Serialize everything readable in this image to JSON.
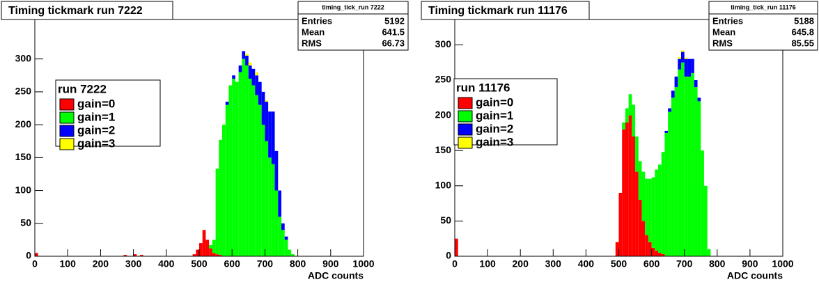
{
  "chart_data": [
    {
      "type": "histogram",
      "title": "Timing tickmark run 7222",
      "x_label": "ADC counts",
      "legend_title": "run 7222",
      "stats": {
        "title": "timing_tick_run 7222",
        "rows": [
          {
            "label": "Entries",
            "value": 5192
          },
          {
            "label": "Mean",
            "value": 641.5
          },
          {
            "label": "RMS",
            "value": 66.73
          }
        ]
      },
      "bins": [
        0,
        10,
        20,
        30,
        40,
        50,
        60,
        70,
        80,
        90,
        100,
        110,
        120,
        130,
        140,
        150,
        160,
        170,
        180,
        190,
        200,
        210,
        220,
        230,
        240,
        250,
        260,
        270,
        280,
        290,
        300,
        310,
        320,
        330,
        340,
        350,
        360,
        370,
        380,
        390,
        400,
        410,
        420,
        430,
        440,
        450,
        460,
        470,
        480,
        490,
        500,
        510,
        520,
        530,
        540,
        550,
        560,
        570,
        580,
        590,
        600,
        610,
        620,
        630,
        640,
        650,
        660,
        670,
        680,
        690,
        700,
        710,
        720,
        730,
        740,
        750,
        760,
        770,
        780,
        790,
        800,
        810,
        820,
        830,
        840,
        850,
        860,
        870,
        880,
        890,
        900,
        910,
        920,
        930,
        940,
        950,
        960,
        970,
        980,
        990,
        1000
      ],
      "series": [
        {
          "name": "gain=0",
          "color": "#ff0000",
          "values": [
            5,
            0,
            0,
            0,
            0,
            0,
            0,
            0,
            0,
            0,
            0,
            0,
            0,
            0,
            0,
            0,
            0,
            0,
            0,
            0,
            0,
            0,
            0,
            0,
            0,
            0,
            0,
            2,
            0,
            0,
            3,
            0,
            2,
            0,
            0,
            0,
            0,
            0,
            0,
            0,
            0,
            0,
            0,
            0,
            0,
            0,
            0,
            0,
            3,
            10,
            20,
            40,
            25,
            12,
            5,
            3,
            2,
            0,
            0,
            0,
            0,
            0,
            0,
            0,
            0,
            0,
            0,
            0,
            0,
            0,
            0,
            0,
            0,
            0,
            0,
            0,
            0,
            0,
            0,
            0,
            0,
            0,
            0,
            0,
            0,
            0,
            0,
            0,
            0,
            0,
            0,
            0,
            0,
            0,
            0,
            0,
            0,
            0,
            0,
            0
          ]
        },
        {
          "name": "gain=1",
          "color": "#00ff00",
          "values": [
            0,
            0,
            0,
            0,
            0,
            0,
            0,
            0,
            0,
            0,
            0,
            0,
            0,
            0,
            0,
            0,
            0,
            0,
            0,
            0,
            0,
            0,
            0,
            0,
            0,
            0,
            0,
            0,
            0,
            0,
            0,
            0,
            0,
            0,
            0,
            0,
            0,
            0,
            0,
            0,
            0,
            0,
            0,
            0,
            0,
            0,
            0,
            0,
            0,
            0,
            0,
            0,
            0,
            5,
            20,
            130,
            175,
            200,
            230,
            260,
            270,
            265,
            280,
            300,
            290,
            270,
            260,
            245,
            230,
            200,
            175,
            150,
            140,
            100,
            60,
            40,
            25,
            10,
            3,
            0,
            0,
            0,
            0,
            0,
            0,
            0,
            0,
            0,
            0,
            0,
            0,
            0,
            0,
            0,
            0,
            0,
            0,
            0,
            0,
            0
          ]
        },
        {
          "name": "gain=2",
          "color": "#0000ff",
          "values": [
            0,
            0,
            0,
            0,
            0,
            0,
            0,
            0,
            0,
            0,
            0,
            0,
            0,
            0,
            0,
            0,
            0,
            0,
            0,
            0,
            0,
            0,
            0,
            0,
            0,
            0,
            0,
            0,
            0,
            0,
            0,
            0,
            0,
            0,
            0,
            0,
            0,
            0,
            0,
            0,
            0,
            0,
            0,
            0,
            0,
            0,
            0,
            0,
            0,
            0,
            0,
            0,
            0,
            0,
            0,
            0,
            0,
            0,
            5,
            0,
            5,
            0,
            10,
            12,
            15,
            20,
            25,
            30,
            35,
            50,
            60,
            70,
            80,
            60,
            40,
            10,
            5,
            0,
            0,
            0,
            0,
            0,
            0,
            0,
            0,
            0,
            0,
            0,
            0,
            0,
            0,
            0,
            0,
            0,
            0,
            0,
            0,
            0,
            0,
            0
          ]
        },
        {
          "name": "gain=3",
          "color": "#ffff00",
          "values": [
            0,
            0,
            0,
            0,
            0,
            0,
            0,
            0,
            0,
            0,
            0,
            0,
            0,
            0,
            0,
            0,
            0,
            0,
            0,
            0,
            0,
            0,
            0,
            0,
            0,
            0,
            0,
            0,
            0,
            0,
            0,
            0,
            0,
            0,
            0,
            0,
            0,
            0,
            0,
            0,
            0,
            0,
            0,
            0,
            0,
            0,
            0,
            0,
            0,
            0,
            0,
            0,
            0,
            0,
            0,
            0,
            0,
            0,
            0,
            0,
            0,
            0,
            0,
            0,
            3,
            5,
            0,
            5,
            0,
            0,
            2,
            0,
            0,
            0,
            0,
            0,
            0,
            0,
            0,
            0,
            0,
            0,
            0,
            0,
            0,
            0,
            0,
            0,
            0,
            0,
            0,
            0,
            0,
            0,
            0,
            0,
            0,
            0,
            0,
            0
          ]
        }
      ],
      "xlim": [
        0,
        1000
      ],
      "xticks": [
        0,
        100,
        200,
        300,
        400,
        500,
        600,
        700,
        800,
        900,
        1000
      ],
      "ylim": [
        0,
        360
      ],
      "yticks": [
        0,
        50,
        100,
        150,
        200,
        250,
        300
      ]
    },
    {
      "type": "histogram",
      "title": "Timing tickmark run 11176",
      "x_label": "ADC counts",
      "legend_title": "run 11176",
      "stats": {
        "title": "timing_tick_run 11176",
        "rows": [
          {
            "label": "Entries",
            "value": 5188
          },
          {
            "label": "Mean",
            "value": 645.8
          },
          {
            "label": "RMS",
            "value": 85.55
          }
        ]
      },
      "bins": [
        0,
        10,
        20,
        30,
        40,
        50,
        60,
        70,
        80,
        90,
        100,
        110,
        120,
        130,
        140,
        150,
        160,
        170,
        180,
        190,
        200,
        210,
        220,
        230,
        240,
        250,
        260,
        270,
        280,
        290,
        300,
        310,
        320,
        330,
        340,
        350,
        360,
        370,
        380,
        390,
        400,
        410,
        420,
        430,
        440,
        450,
        460,
        470,
        480,
        490,
        500,
        510,
        520,
        530,
        540,
        550,
        560,
        570,
        580,
        590,
        600,
        610,
        620,
        630,
        640,
        650,
        660,
        670,
        680,
        690,
        700,
        710,
        720,
        730,
        740,
        750,
        760,
        770,
        780,
        790,
        800,
        810,
        820,
        830,
        840,
        850,
        860,
        870,
        880,
        890,
        900,
        910,
        920,
        930,
        940,
        950,
        960,
        970,
        980,
        990,
        1000
      ],
      "series": [
        {
          "name": "gain=0",
          "color": "#ff0000",
          "values": [
            25,
            0,
            0,
            0,
            0,
            0,
            0,
            0,
            0,
            0,
            0,
            0,
            0,
            0,
            0,
            0,
            0,
            0,
            0,
            0,
            0,
            0,
            0,
            0,
            0,
            0,
            0,
            0,
            0,
            0,
            0,
            0,
            0,
            0,
            0,
            0,
            0,
            0,
            0,
            0,
            0,
            0,
            0,
            0,
            0,
            0,
            0,
            0,
            0,
            20,
            90,
            180,
            190,
            200,
            170,
            120,
            80,
            50,
            30,
            20,
            12,
            8,
            5,
            3,
            0,
            0,
            0,
            0,
            0,
            0,
            0,
            0,
            0,
            0,
            0,
            0,
            0,
            0,
            0,
            0,
            0,
            0,
            0,
            0,
            0,
            0,
            0,
            0,
            0,
            0,
            0,
            0,
            0,
            0,
            0,
            0,
            0,
            0,
            0,
            0
          ]
        },
        {
          "name": "gain=1",
          "color": "#00ff00",
          "values": [
            0,
            0,
            0,
            0,
            0,
            0,
            0,
            0,
            0,
            0,
            0,
            0,
            0,
            0,
            0,
            0,
            0,
            0,
            0,
            0,
            0,
            0,
            0,
            0,
            0,
            0,
            0,
            0,
            0,
            0,
            0,
            0,
            0,
            0,
            0,
            0,
            0,
            0,
            0,
            0,
            0,
            0,
            0,
            0,
            0,
            0,
            0,
            0,
            0,
            0,
            0,
            10,
            20,
            30,
            45,
            50,
            55,
            70,
            80,
            90,
            100,
            115,
            125,
            145,
            175,
            205,
            225,
            240,
            265,
            275,
            255,
            255,
            260,
            240,
            220,
            150,
            100,
            10,
            0,
            0,
            0,
            0,
            0,
            0,
            0,
            0,
            0,
            0,
            0,
            0,
            0,
            0,
            0,
            0,
            0,
            0,
            0,
            0,
            0,
            0
          ]
        },
        {
          "name": "gain=2",
          "color": "#0000ff",
          "values": [
            0,
            0,
            0,
            0,
            0,
            0,
            0,
            0,
            0,
            0,
            0,
            0,
            0,
            0,
            0,
            0,
            0,
            0,
            0,
            0,
            0,
            0,
            0,
            0,
            0,
            0,
            0,
            0,
            0,
            0,
            0,
            0,
            0,
            0,
            0,
            0,
            0,
            0,
            0,
            0,
            0,
            0,
            0,
            0,
            0,
            0,
            0,
            0,
            0,
            0,
            0,
            0,
            0,
            0,
            0,
            0,
            0,
            0,
            0,
            0,
            0,
            0,
            0,
            0,
            3,
            5,
            10,
            15,
            15,
            15,
            25,
            25,
            20,
            10,
            5,
            0,
            0,
            0,
            0,
            0,
            0,
            0,
            0,
            0,
            0,
            0,
            0,
            0,
            0,
            0,
            0,
            0,
            0,
            0,
            0,
            0,
            0,
            0,
            0,
            0
          ]
        },
        {
          "name": "gain=3",
          "color": "#ffff00",
          "values": [
            0,
            0,
            0,
            0,
            0,
            0,
            0,
            0,
            0,
            0,
            0,
            0,
            0,
            0,
            0,
            0,
            0,
            0,
            0,
            0,
            0,
            0,
            0,
            0,
            0,
            0,
            0,
            0,
            0,
            0,
            0,
            0,
            0,
            0,
            0,
            0,
            0,
            0,
            0,
            0,
            0,
            0,
            0,
            0,
            0,
            0,
            0,
            0,
            0,
            0,
            0,
            0,
            0,
            0,
            0,
            0,
            0,
            0,
            0,
            0,
            0,
            0,
            0,
            0,
            0,
            0,
            0,
            0,
            3,
            2,
            2,
            0,
            0,
            0,
            0,
            0,
            0,
            0,
            0,
            0,
            0,
            0,
            0,
            0,
            0,
            0,
            0,
            0,
            0,
            0,
            0,
            0,
            0,
            0,
            0,
            0,
            0,
            0,
            0,
            0
          ]
        }
      ],
      "xlim": [
        0,
        1000
      ],
      "xticks": [
        0,
        100,
        200,
        300,
        400,
        500,
        600,
        700,
        800,
        900,
        1000
      ],
      "ylim": [
        0,
        336
      ],
      "yticks": [
        0,
        50,
        100,
        150,
        200,
        250,
        300
      ]
    }
  ]
}
